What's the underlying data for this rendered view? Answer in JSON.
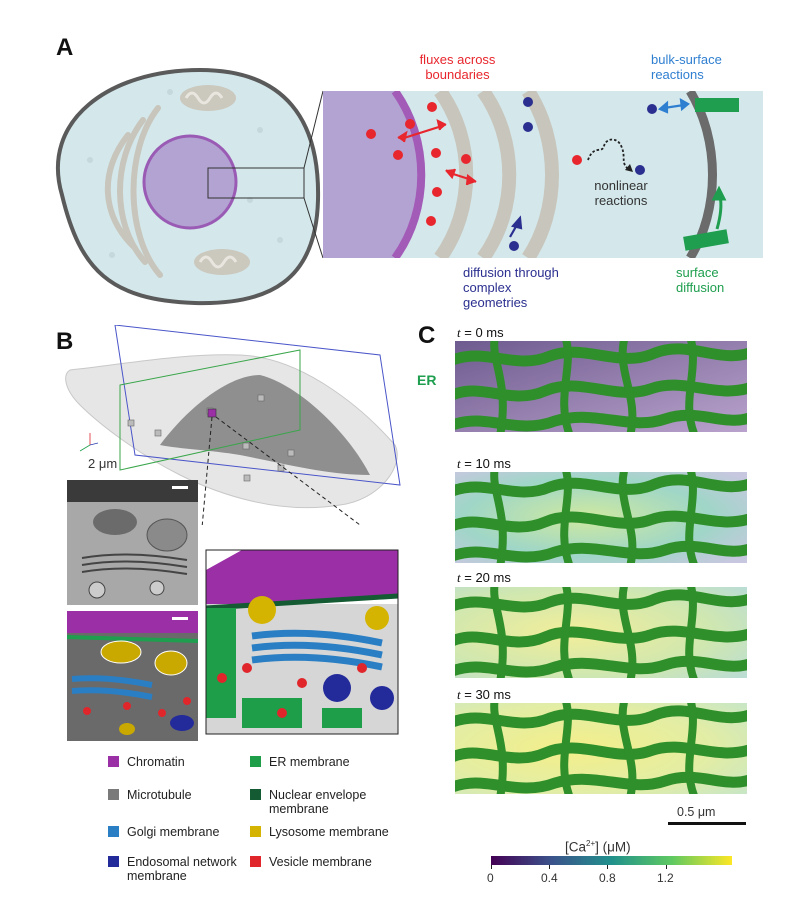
{
  "panels": {
    "a": "A",
    "b": "B",
    "c": "C"
  },
  "panel_a": {
    "fluxes": "fluxes across boundaries",
    "bulk_surface": "bulk-surface reactions",
    "nonlinear": "nonlinear reactions",
    "diffusion_complex": "diffusion through complex geometries",
    "surface_diffusion": "surface diffusion"
  },
  "panel_b": {
    "scale": "2 μm",
    "legend": [
      {
        "label": "Chromatin",
        "color": "#9b2fa6"
      },
      {
        "label": "ER membrane",
        "color": "#1f9e4a"
      },
      {
        "label": "Microtubule",
        "color": "#7a7a7a"
      },
      {
        "label": "Nuclear envelope membrane",
        "color": "#145a32"
      },
      {
        "label": "Golgi membrane",
        "color": "#2a7fc4"
      },
      {
        "label": "Lysosome membrane",
        "color": "#d4b400"
      },
      {
        "label": "Endosomal network membrane",
        "color": "#232a9a"
      },
      {
        "label": "Vesicle membrane",
        "color": "#e0262b"
      }
    ]
  },
  "panel_c": {
    "er_label": "ER",
    "time_prefix": "t",
    "times": [
      "= 0 ms",
      "= 10 ms",
      "= 20 ms",
      "= 30 ms"
    ],
    "scalebar": "0.5 μm",
    "colorbar_title": "[Ca",
    "colorbar_sup": "2+",
    "colorbar_unit": "] (μM)",
    "colorbar_ticks": [
      "0",
      "0.4",
      "0.8",
      "1.2"
    ]
  }
}
